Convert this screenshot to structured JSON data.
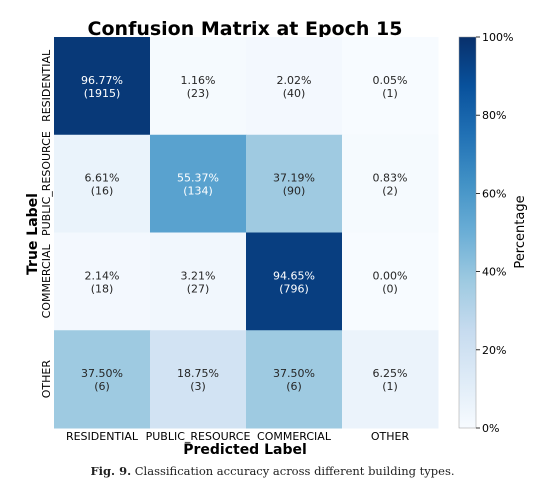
{
  "chart_data": {
    "type": "heatmap",
    "title": "Confusion Matrix at Epoch 15",
    "xlabel": "Predicted Label",
    "ylabel": "True Label",
    "x_categories": [
      "RESIDENTIAL",
      "PUBLIC_RESOURCE",
      "COMMERCIAL",
      "OTHER"
    ],
    "y_categories": [
      "RESIDENTIAL",
      "PUBLIC_RESOURCE",
      "COMMERCIAL",
      "OTHER"
    ],
    "percent": [
      [
        96.77,
        1.16,
        2.02,
        0.05
      ],
      [
        6.61,
        55.37,
        37.19,
        0.83
      ],
      [
        2.14,
        3.21,
        94.65,
        0.0
      ],
      [
        37.5,
        18.75,
        37.5,
        6.25
      ]
    ],
    "counts": [
      [
        1915,
        23,
        40,
        1
      ],
      [
        16,
        134,
        90,
        2
      ],
      [
        18,
        27,
        796,
        0
      ],
      [
        6,
        3,
        6,
        1
      ]
    ],
    "colorbar": {
      "label": "Percentage",
      "range": [
        0,
        100
      ],
      "ticks": [
        "0%",
        "20%",
        "40%",
        "60%",
        "80%",
        "100%"
      ],
      "tick_values": [
        0,
        20,
        40,
        60,
        80,
        100
      ],
      "colormap": "Blues"
    }
  },
  "caption": {
    "prefix": "Fig. 9.",
    "text": "Classification accuracy across different building types."
  }
}
